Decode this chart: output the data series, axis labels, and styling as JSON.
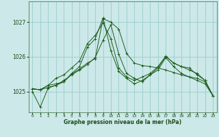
{
  "title": "Graphe pression niveau de la mer (hPa)",
  "bg_color": "#cce8e8",
  "grid_color": "#99cccc",
  "line_color": "#1a5c1a",
  "xlim": [
    -0.5,
    23.5
  ],
  "ylim": [
    1024.4,
    1027.6
  ],
  "yticks": [
    1025,
    1026,
    1027
  ],
  "xticks": [
    0,
    1,
    2,
    3,
    4,
    5,
    6,
    7,
    8,
    9,
    10,
    11,
    12,
    13,
    14,
    15,
    16,
    17,
    18,
    19,
    20,
    21,
    22,
    23
  ],
  "series": [
    [
      1025.0,
      1024.55,
      1025.1,
      1025.18,
      1025.28,
      1025.5,
      1025.65,
      1025.82,
      1025.95,
      1027.1,
      1027.0,
      1026.8,
      1026.1,
      1025.82,
      1025.75,
      1025.72,
      1025.68,
      1025.62,
      1025.55,
      1025.48,
      1025.42,
      1025.32,
      1025.22,
      1024.88
    ],
    [
      1025.08,
      1025.05,
      1025.18,
      1025.22,
      1025.28,
      1025.52,
      1025.72,
      1026.28,
      1026.52,
      1027.12,
      1026.18,
      1025.58,
      1025.38,
      1025.22,
      1025.32,
      1025.48,
      1025.68,
      1026.02,
      1025.82,
      1025.72,
      1025.68,
      1025.48,
      1025.32,
      1024.88
    ],
    [
      1025.08,
      1025.05,
      1025.18,
      1025.38,
      1025.48,
      1025.68,
      1025.88,
      1026.38,
      1026.62,
      1026.98,
      1026.52,
      1025.68,
      1025.42,
      1025.32,
      1025.42,
      1025.52,
      1025.72,
      1026.02,
      1025.82,
      1025.72,
      1025.62,
      1025.52,
      1025.32,
      1024.88
    ],
    [
      1025.08,
      1025.05,
      1025.12,
      1025.18,
      1025.32,
      1025.48,
      1025.62,
      1025.78,
      1025.98,
      1026.48,
      1026.92,
      1026.08,
      1025.52,
      1025.38,
      1025.28,
      1025.48,
      1025.62,
      1025.98,
      1025.72,
      1025.52,
      1025.42,
      1025.38,
      1025.28,
      1024.88
    ]
  ]
}
